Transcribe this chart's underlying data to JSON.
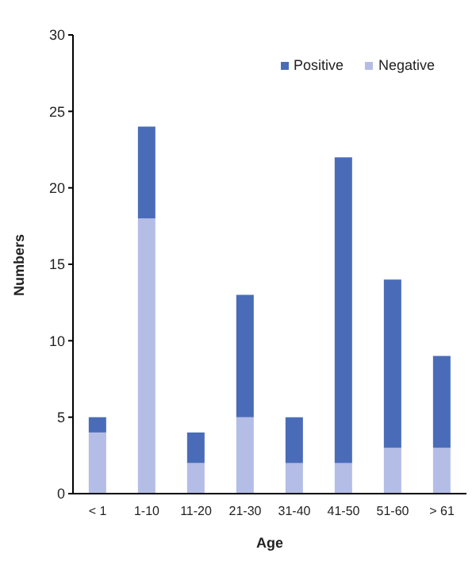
{
  "chart_data": {
    "type": "bar",
    "stacked": true,
    "xlabel": "Age",
    "ylabel": "Numbers",
    "categories": [
      "< 1",
      "1-10",
      "11-20",
      "21-30",
      "31-40",
      "41-50",
      "51-60",
      "> 61"
    ],
    "series": [
      {
        "name": "Negative",
        "color": "#b4bde6",
        "values": [
          4,
          18,
          2,
          5,
          2,
          2,
          3,
          3
        ]
      },
      {
        "name": "Positive",
        "color": "#4a6cb8",
        "values": [
          1,
          6,
          2,
          8,
          3,
          20,
          11,
          6
        ]
      }
    ],
    "ylim": [
      0,
      30
    ],
    "yticks": [
      0,
      5,
      10,
      15,
      20,
      25,
      30
    ],
    "grid": false,
    "legend": "top right"
  }
}
